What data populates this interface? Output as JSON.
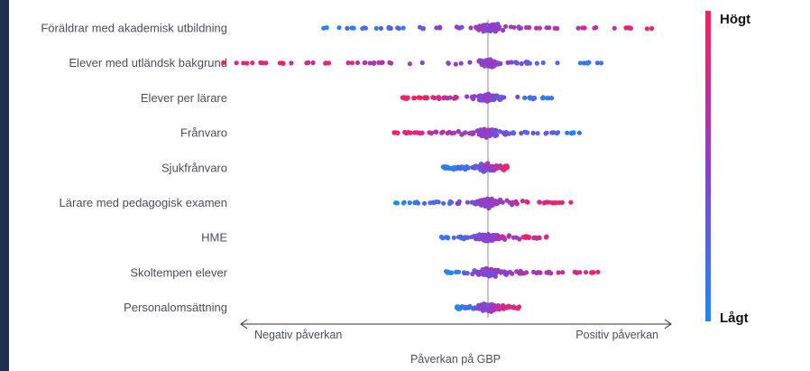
{
  "chart_data": {
    "type": "scatter",
    "subtype": "beeswarm",
    "title": "",
    "xlabel": "Påverkan på GBP",
    "arrow_left_label": "Negativ påverkan",
    "arrow_right_label": "Positiv påverkan",
    "colorbar": {
      "high_label": "Högt",
      "low_label": "Lågt",
      "high_color": "#ff1e5a",
      "mid_color": "#8b3fd1",
      "low_color": "#1e88f5"
    },
    "features": [
      {
        "name": "Föräldrar med akademisk utbildning",
        "xrange": [
          -1.85,
          1.85
        ],
        "dir": 1
      },
      {
        "name": "Elever med utländsk bakgrund",
        "xrange": [
          -2.95,
          1.32
        ],
        "dir": -1
      },
      {
        "name": "Elever per lärare",
        "xrange": [
          -0.95,
          0.72
        ],
        "dir": -1
      },
      {
        "name": "Frånvaro",
        "xrange": [
          -1.05,
          1.15
        ],
        "dir": -1
      },
      {
        "name": "Sjukfrånvaro",
        "xrange": [
          -0.5,
          0.22
        ],
        "dir": 1
      },
      {
        "name": "Lärare med pedagogisk examen",
        "xrange": [
          -1.05,
          0.95
        ],
        "dir": 1
      },
      {
        "name": "HME",
        "xrange": [
          -0.52,
          0.68
        ],
        "dir": 1
      },
      {
        "name": "Skoltempen elever",
        "xrange": [
          -0.48,
          1.28
        ],
        "dir": 1
      },
      {
        "name": "Personalomsättning",
        "xrange": [
          -0.35,
          0.35
        ],
        "dir": 1
      }
    ]
  }
}
